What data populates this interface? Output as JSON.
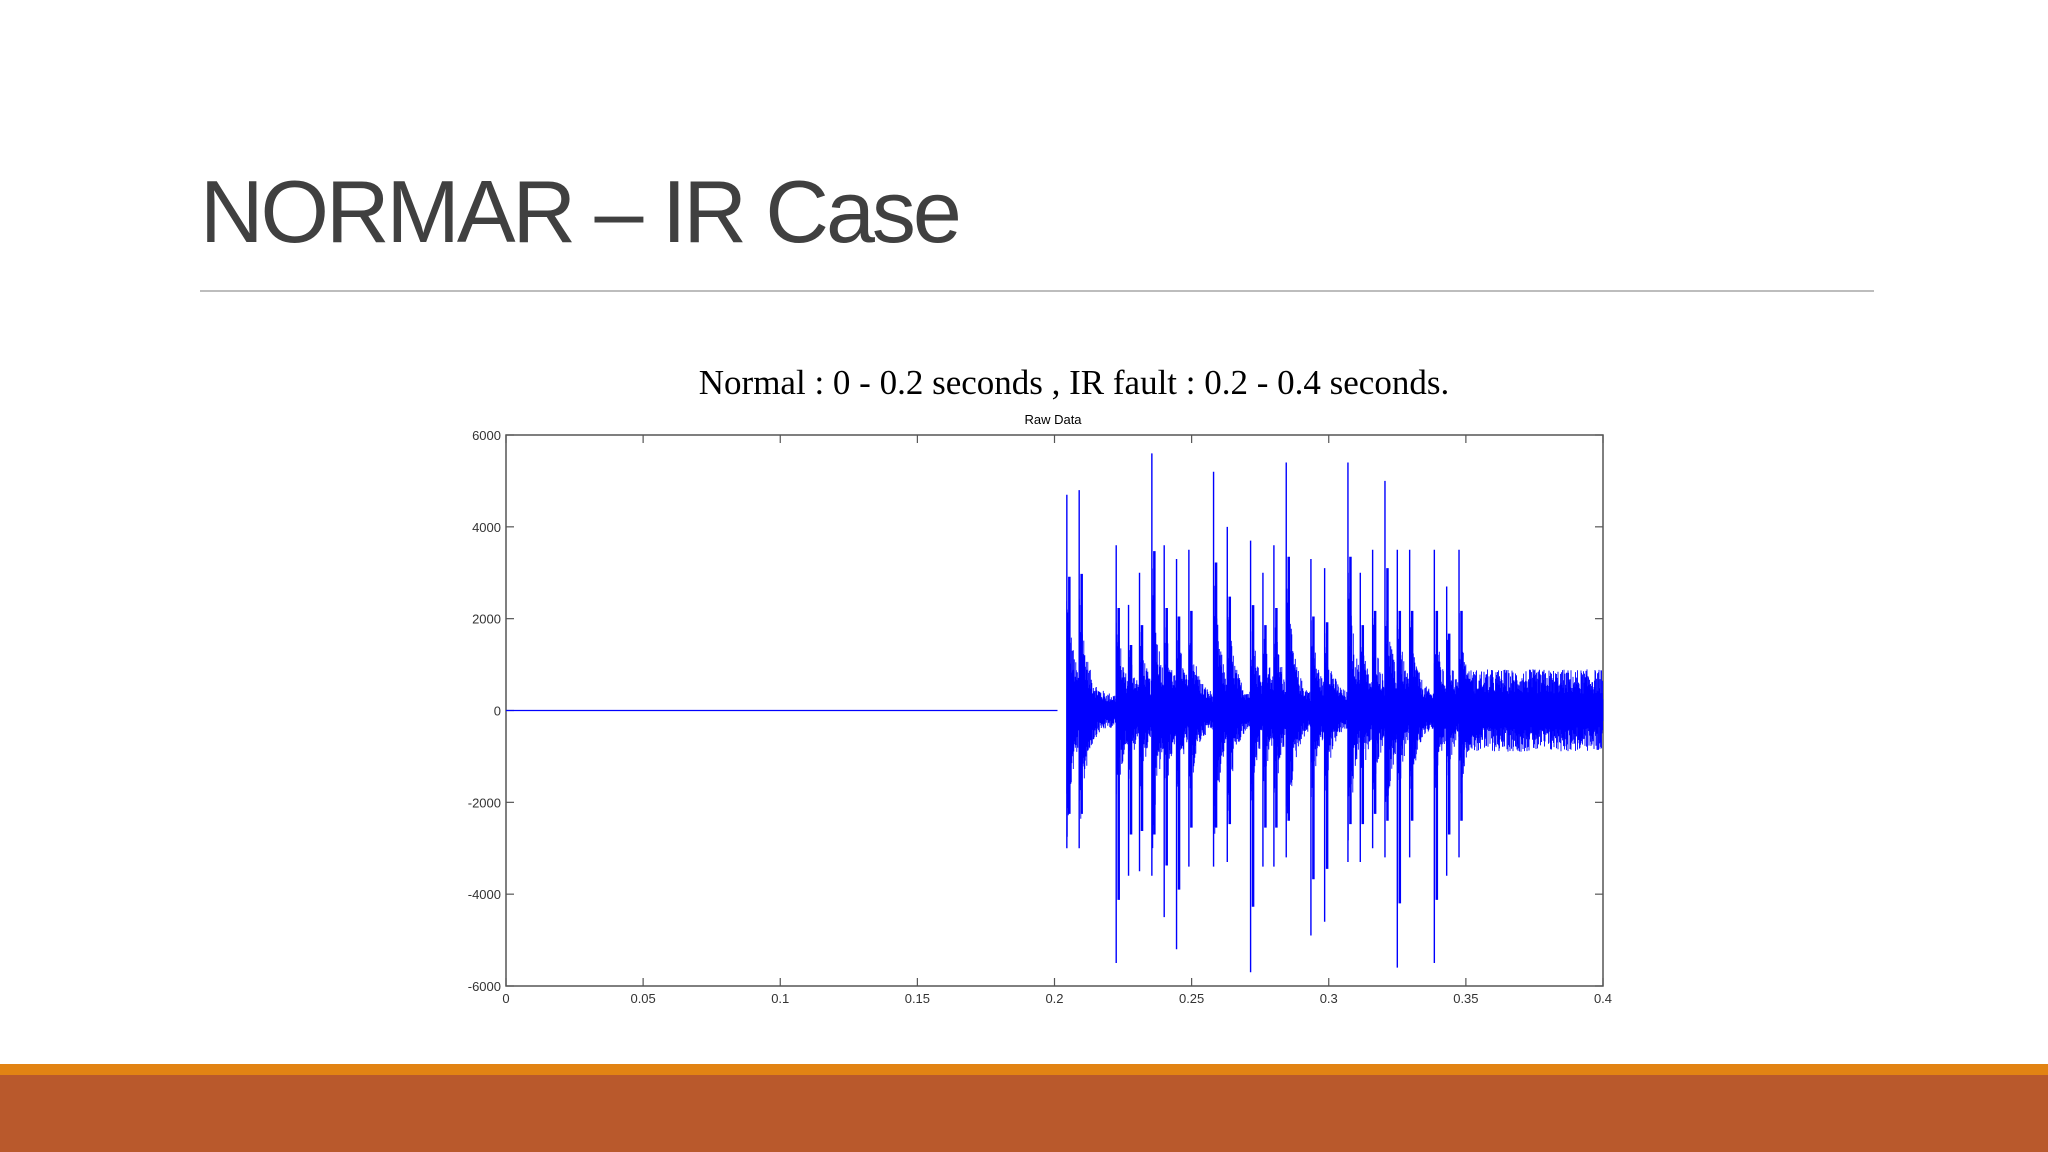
{
  "slide": {
    "title": "NORMAR – IR Case",
    "subtitle": "Normal : 0 - 0.2 seconds , IR fault :  0.2 - 0.4 seconds."
  },
  "colors": {
    "title_text": "#404040",
    "signal": "#0000ff",
    "accent_orange": "#e28313",
    "accent_rust": "#b9592c"
  },
  "chart_data": {
    "type": "line",
    "title": "Raw Data",
    "xlabel": "",
    "ylabel": "",
    "xlim": [
      0,
      0.4
    ],
    "ylim": [
      -6000,
      6000
    ],
    "x_ticks": [
      "0",
      "0.05",
      "0.1",
      "0.15",
      "0.2",
      "0.25",
      "0.3",
      "0.35",
      "0.4"
    ],
    "y_ticks": [
      "6000",
      "4000",
      "2000",
      "0",
      "-2000",
      "-4000",
      "-6000"
    ],
    "grid": false,
    "legend": null,
    "annotations": [
      "Normal : 0 - 0.2 seconds",
      "IR fault : 0.2 - 0.4 seconds"
    ],
    "series": [
      {
        "name": "Raw Data",
        "color": "#0000ff",
        "segments": [
          {
            "label": "Normal",
            "x_range": [
              0,
              0.2
            ],
            "amplitude": 0
          },
          {
            "label": "IR fault",
            "x_range": [
              0.2,
              0.4
            ],
            "amplitude_range": [
              -5700,
              5700
            ]
          }
        ],
        "fault_impulses": [
          {
            "x": 0.2045,
            "max": 4700,
            "min": -3000
          },
          {
            "x": 0.209,
            "max": 4800,
            "min": -3000
          },
          {
            "x": 0.2225,
            "max": 3600,
            "min": -5500
          },
          {
            "x": 0.227,
            "max": 2300,
            "min": -3600
          },
          {
            "x": 0.231,
            "max": 3000,
            "min": -3500
          },
          {
            "x": 0.2355,
            "max": 5600,
            "min": -3600
          },
          {
            "x": 0.24,
            "max": 3600,
            "min": -4500
          },
          {
            "x": 0.2445,
            "max": 3300,
            "min": -5200
          },
          {
            "x": 0.249,
            "max": 3500,
            "min": -3400
          },
          {
            "x": 0.258,
            "max": 5200,
            "min": -3400
          },
          {
            "x": 0.263,
            "max": 4000,
            "min": -3300
          },
          {
            "x": 0.2715,
            "max": 3700,
            "min": -5700
          },
          {
            "x": 0.276,
            "max": 3000,
            "min": -3400
          },
          {
            "x": 0.28,
            "max": 3600,
            "min": -3400
          },
          {
            "x": 0.2845,
            "max": 5400,
            "min": -3200
          },
          {
            "x": 0.2935,
            "max": 3300,
            "min": -4900
          },
          {
            "x": 0.2985,
            "max": 3100,
            "min": -4600
          },
          {
            "x": 0.307,
            "max": 5400,
            "min": -3300
          },
          {
            "x": 0.3115,
            "max": 3000,
            "min": -3300
          },
          {
            "x": 0.316,
            "max": 3500,
            "min": -3000
          },
          {
            "x": 0.3205,
            "max": 5000,
            "min": -3200
          },
          {
            "x": 0.325,
            "max": 3500,
            "min": -5600
          },
          {
            "x": 0.3295,
            "max": 3500,
            "min": -3200
          },
          {
            "x": 0.3385,
            "max": 3500,
            "min": -5500
          },
          {
            "x": 0.343,
            "max": 2700,
            "min": -3600
          },
          {
            "x": 0.3475,
            "max": 3500,
            "min": -3200
          }
        ]
      }
    ]
  }
}
